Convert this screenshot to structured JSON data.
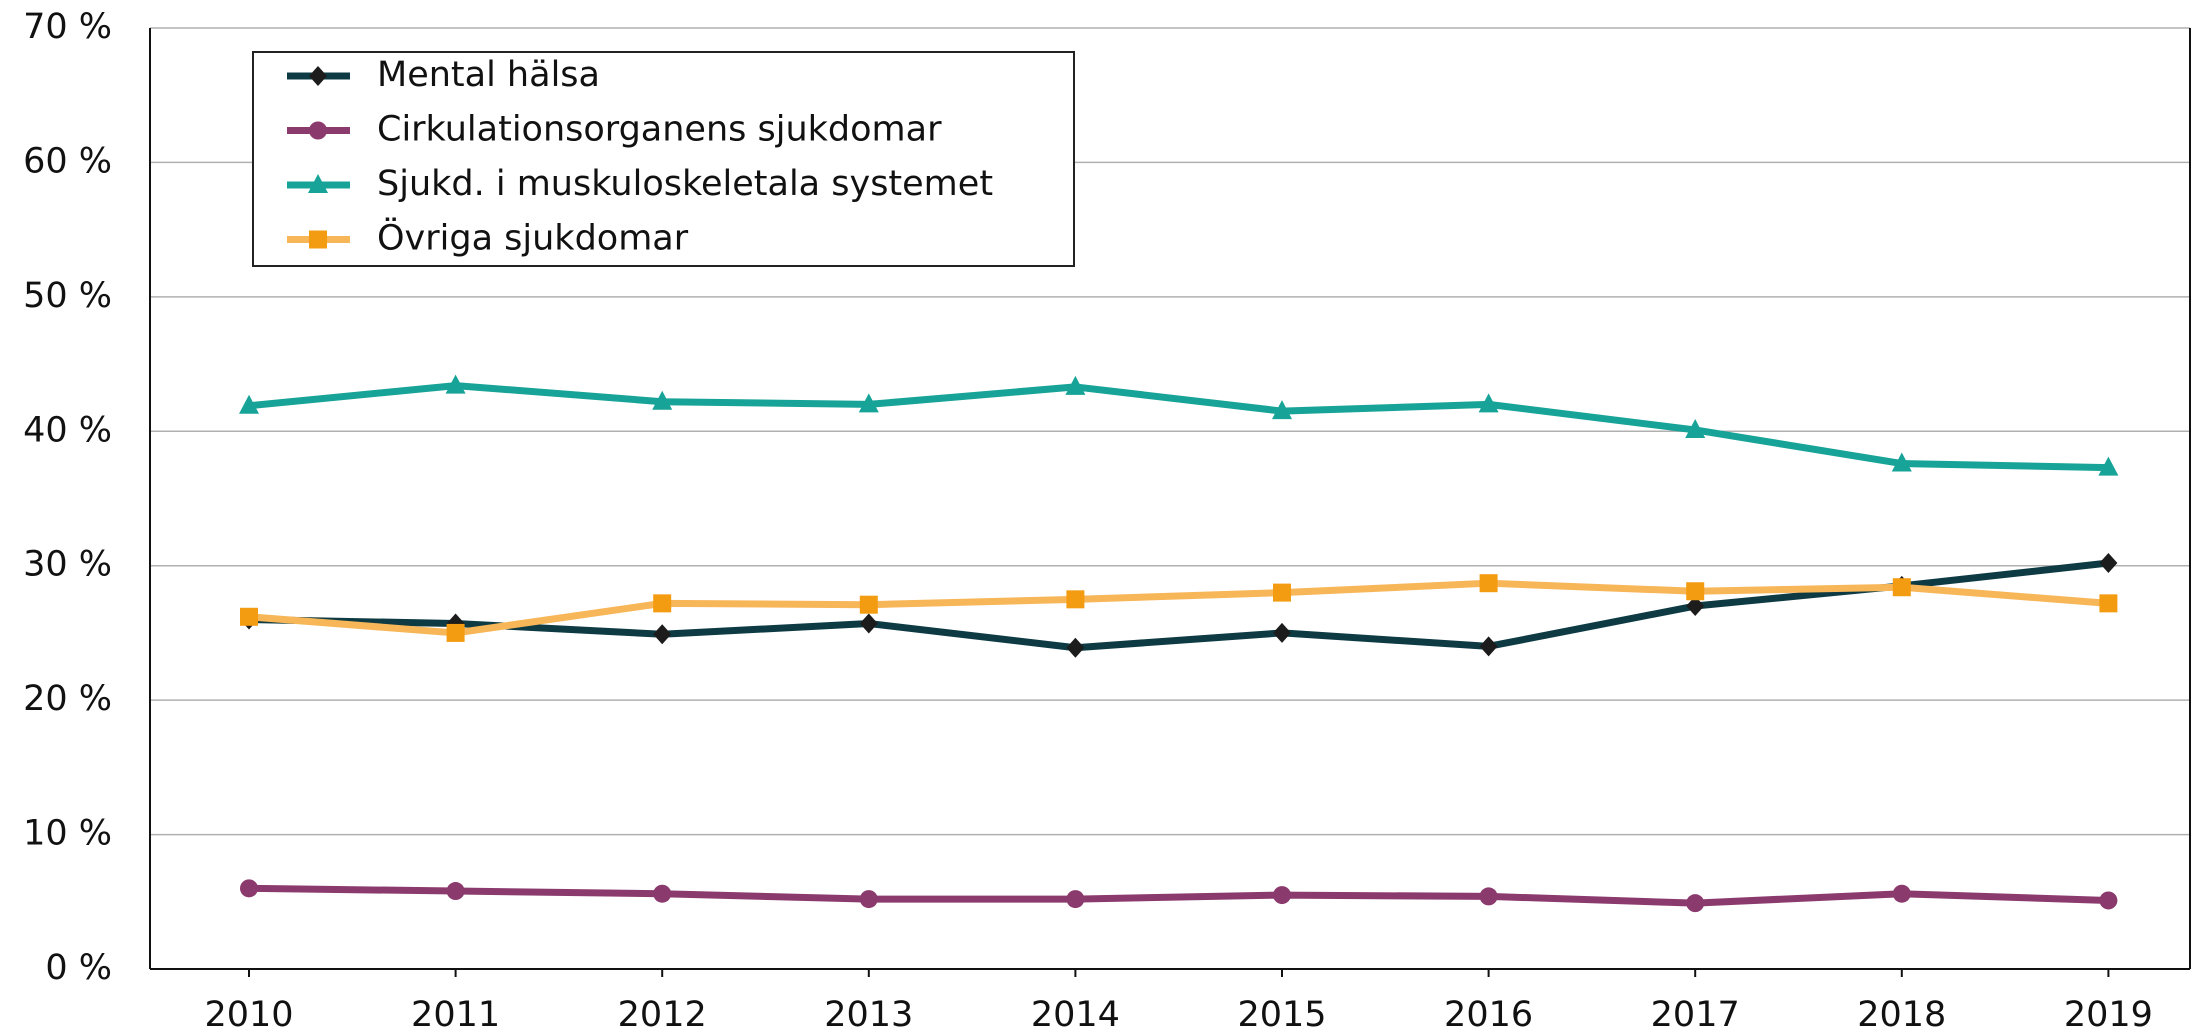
{
  "chart_data": {
    "type": "line",
    "categories": [
      "2010",
      "2011",
      "2012",
      "2013",
      "2014",
      "2015",
      "2016",
      "2017",
      "2018",
      "2019"
    ],
    "series": [
      {
        "name": "Mental hälsa",
        "color": "#0e3b43",
        "marker": "diamond",
        "values": [
          26.0,
          25.7,
          24.9,
          25.7,
          23.9,
          25.0,
          24.0,
          27.0,
          28.5,
          30.2
        ]
      },
      {
        "name": "Cirkulationsorganens sjukdomar",
        "color": "#8b3a6e",
        "marker": "circle",
        "values": [
          6.0,
          5.8,
          5.6,
          5.2,
          5.2,
          5.5,
          5.4,
          4.9,
          5.6,
          5.1
        ]
      },
      {
        "name": "Sjukd. i muskuloskeletala systemet",
        "color": "#17a398",
        "marker": "triangle",
        "values": [
          41.9,
          43.4,
          42.2,
          42.0,
          43.3,
          41.5,
          42.0,
          40.1,
          37.6,
          37.3
        ]
      },
      {
        "name": "Övriga sjukdomar",
        "color": "#f7b657",
        "marker": "square",
        "values": [
          26.2,
          25.0,
          27.2,
          27.1,
          27.5,
          28.0,
          28.7,
          28.1,
          28.4,
          27.2
        ]
      }
    ],
    "ylim": [
      0,
      70
    ],
    "yticks": [
      {
        "value": 0,
        "label": "0 %"
      },
      {
        "value": 10,
        "label": "10 %"
      },
      {
        "value": 20,
        "label": "20 %"
      },
      {
        "value": 30,
        "label": "30 %"
      },
      {
        "value": 40,
        "label": "40 %"
      },
      {
        "value": 50,
        "label": "50 %"
      },
      {
        "value": 60,
        "label": "60 %"
      },
      {
        "value": 70,
        "label": "70 %"
      }
    ],
    "grid": true,
    "legend": "top-left"
  }
}
